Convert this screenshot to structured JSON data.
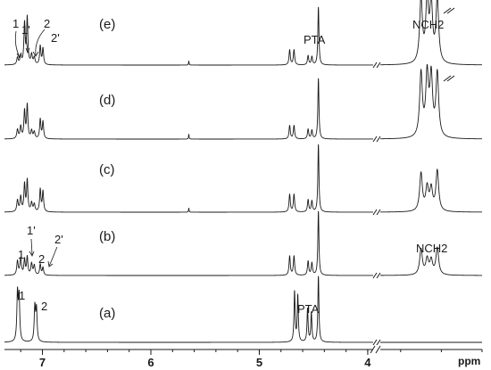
{
  "chart_data": {
    "type": "line",
    "title": "",
    "xlabel": "ppm",
    "ylabel": "",
    "x_axis": {
      "reversed": true,
      "broken": true,
      "segments": [
        [
          7.35,
          3.95
        ],
        [
          3.55,
          3.3
        ]
      ]
    },
    "x_ticks": [
      {
        "value": 7,
        "label": "7"
      },
      {
        "value": 6,
        "label": "6"
      },
      {
        "value": 5,
        "label": "5"
      },
      {
        "value": 4,
        "label": "4"
      }
    ],
    "grid": false,
    "legend": "none",
    "line_color": "#1a1a1a",
    "series": [
      {
        "label": "(e)",
        "peaks": [
          {
            "ppm": 7.23,
            "h": 0.12,
            "w": 0.008
          },
          {
            "ppm": 7.2,
            "h": 0.15,
            "w": 0.008
          },
          {
            "ppm": 7.165,
            "h": 0.7,
            "w": 0.007
          },
          {
            "ppm": 7.14,
            "h": 0.8,
            "w": 0.007
          },
          {
            "ppm": 7.1,
            "h": 0.17,
            "w": 0.008
          },
          {
            "ppm": 7.075,
            "h": 0.12,
            "w": 0.008
          },
          {
            "ppm": 7.02,
            "h": 0.32,
            "w": 0.007
          },
          {
            "ppm": 6.995,
            "h": 0.28,
            "w": 0.007
          },
          {
            "ppm": 5.65,
            "h": 0.07,
            "w": 0.003
          },
          {
            "ppm": 4.72,
            "h": 0.26,
            "w": 0.007
          },
          {
            "ppm": 4.68,
            "h": 0.26,
            "w": 0.007
          },
          {
            "ppm": 4.55,
            "h": 0.16,
            "w": 0.007
          },
          {
            "ppm": 4.515,
            "h": 0.14,
            "w": 0.007
          },
          {
            "ppm": 4.455,
            "h": 1.0,
            "w": 0.006
          },
          {
            "ppm": 3.45,
            "h": 1.1,
            "w": 0.004
          },
          {
            "ppm": 3.435,
            "h": 1.05,
            "w": 0.004
          },
          {
            "ppm": 3.425,
            "h": 1.0,
            "w": 0.004
          },
          {
            "ppm": 3.41,
            "h": 1.1,
            "w": 0.004
          }
        ]
      },
      {
        "label": "(d)",
        "peaks": [
          {
            "ppm": 7.23,
            "h": 0.15,
            "w": 0.008
          },
          {
            "ppm": 7.2,
            "h": 0.2,
            "w": 0.008
          },
          {
            "ppm": 7.165,
            "h": 0.45,
            "w": 0.007
          },
          {
            "ppm": 7.14,
            "h": 0.55,
            "w": 0.007
          },
          {
            "ppm": 7.1,
            "h": 0.13,
            "w": 0.008
          },
          {
            "ppm": 7.075,
            "h": 0.11,
            "w": 0.008
          },
          {
            "ppm": 7.02,
            "h": 0.32,
            "w": 0.007
          },
          {
            "ppm": 6.995,
            "h": 0.28,
            "w": 0.007
          },
          {
            "ppm": 5.65,
            "h": 0.08,
            "w": 0.003
          },
          {
            "ppm": 4.72,
            "h": 0.22,
            "w": 0.007
          },
          {
            "ppm": 4.68,
            "h": 0.22,
            "w": 0.007
          },
          {
            "ppm": 4.55,
            "h": 0.16,
            "w": 0.007
          },
          {
            "ppm": 4.515,
            "h": 0.14,
            "w": 0.007
          },
          {
            "ppm": 4.455,
            "h": 1.0,
            "w": 0.006
          },
          {
            "ppm": 3.45,
            "h": 1.05,
            "w": 0.004
          },
          {
            "ppm": 3.435,
            "h": 1.0,
            "w": 0.004
          },
          {
            "ppm": 3.425,
            "h": 0.97,
            "w": 0.004
          },
          {
            "ppm": 3.41,
            "h": 1.05,
            "w": 0.004
          }
        ]
      },
      {
        "label": "(c)",
        "peaks": [
          {
            "ppm": 7.23,
            "h": 0.17,
            "w": 0.008
          },
          {
            "ppm": 7.2,
            "h": 0.22,
            "w": 0.008
          },
          {
            "ppm": 7.165,
            "h": 0.4,
            "w": 0.007
          },
          {
            "ppm": 7.14,
            "h": 0.46,
            "w": 0.007
          },
          {
            "ppm": 7.1,
            "h": 0.13,
            "w": 0.008
          },
          {
            "ppm": 7.075,
            "h": 0.11,
            "w": 0.008
          },
          {
            "ppm": 7.02,
            "h": 0.33,
            "w": 0.007
          },
          {
            "ppm": 6.995,
            "h": 0.3,
            "w": 0.007
          },
          {
            "ppm": 5.65,
            "h": 0.06,
            "w": 0.003
          },
          {
            "ppm": 4.72,
            "h": 0.26,
            "w": 0.007
          },
          {
            "ppm": 4.68,
            "h": 0.26,
            "w": 0.007
          },
          {
            "ppm": 4.55,
            "h": 0.18,
            "w": 0.007
          },
          {
            "ppm": 4.515,
            "h": 0.16,
            "w": 0.007
          },
          {
            "ppm": 4.455,
            "h": 1.0,
            "w": 0.006
          },
          {
            "ppm": 3.45,
            "h": 0.56,
            "w": 0.004
          },
          {
            "ppm": 3.435,
            "h": 0.34,
            "w": 0.004
          },
          {
            "ppm": 3.425,
            "h": 0.32,
            "w": 0.004
          },
          {
            "ppm": 3.41,
            "h": 0.6,
            "w": 0.004
          }
        ]
      },
      {
        "label": "(b)",
        "peaks": [
          {
            "ppm": 7.23,
            "h": 0.22,
            "w": 0.008
          },
          {
            "ppm": 7.2,
            "h": 0.26,
            "w": 0.008
          },
          {
            "ppm": 7.165,
            "h": 0.24,
            "w": 0.007
          },
          {
            "ppm": 7.14,
            "h": 0.28,
            "w": 0.007
          },
          {
            "ppm": 7.1,
            "h": 0.18,
            "w": 0.008
          },
          {
            "ppm": 7.075,
            "h": 0.15,
            "w": 0.008
          },
          {
            "ppm": 7.02,
            "h": 0.17,
            "w": 0.007
          },
          {
            "ppm": 6.995,
            "h": 0.12,
            "w": 0.007
          },
          {
            "ppm": 4.72,
            "h": 0.3,
            "w": 0.007
          },
          {
            "ppm": 4.68,
            "h": 0.3,
            "w": 0.007
          },
          {
            "ppm": 4.55,
            "h": 0.22,
            "w": 0.007
          },
          {
            "ppm": 4.515,
            "h": 0.19,
            "w": 0.007
          },
          {
            "ppm": 4.455,
            "h": 1.0,
            "w": 0.006
          },
          {
            "ppm": 3.45,
            "h": 0.4,
            "w": 0.004
          },
          {
            "ppm": 3.435,
            "h": 0.24,
            "w": 0.004
          },
          {
            "ppm": 3.425,
            "h": 0.22,
            "w": 0.004
          },
          {
            "ppm": 3.41,
            "h": 0.42,
            "w": 0.004
          }
        ]
      },
      {
        "label": "(a)",
        "peaks": [
          {
            "ppm": 7.23,
            "h": 0.72,
            "w": 0.007
          },
          {
            "ppm": 7.215,
            "h": 0.66,
            "w": 0.007
          },
          {
            "ppm": 7.07,
            "h": 0.52,
            "w": 0.007
          },
          {
            "ppm": 7.055,
            "h": 0.48,
            "w": 0.007
          },
          {
            "ppm": 4.675,
            "h": 0.76,
            "w": 0.006
          },
          {
            "ppm": 4.645,
            "h": 0.7,
            "w": 0.006
          },
          {
            "ppm": 4.555,
            "h": 0.5,
            "w": 0.006
          },
          {
            "ppm": 4.52,
            "h": 0.44,
            "w": 0.006
          },
          {
            "ppm": 4.455,
            "h": 1.0,
            "w": 0.006
          }
        ]
      }
    ],
    "annotations": [
      {
        "text": "1",
        "series": "(e)"
      },
      {
        "text": "1'",
        "series": "(e)"
      },
      {
        "text": "2",
        "series": "(e)"
      },
      {
        "text": "2'",
        "series": "(e)"
      },
      {
        "text": "PTA",
        "series": "(e)"
      },
      {
        "text": "NCH2",
        "series": "(e)"
      },
      {
        "text": "1'",
        "series": "(b)"
      },
      {
        "text": "1",
        "series": "(b)"
      },
      {
        "text": "2",
        "series": "(b)"
      },
      {
        "text": "2'",
        "series": "(b)"
      },
      {
        "text": "NCH2",
        "series": "(b)"
      },
      {
        "text": "1",
        "series": "(a)"
      },
      {
        "text": "2",
        "series": "(a)"
      },
      {
        "text": "PTA",
        "series": "(a)"
      }
    ]
  }
}
